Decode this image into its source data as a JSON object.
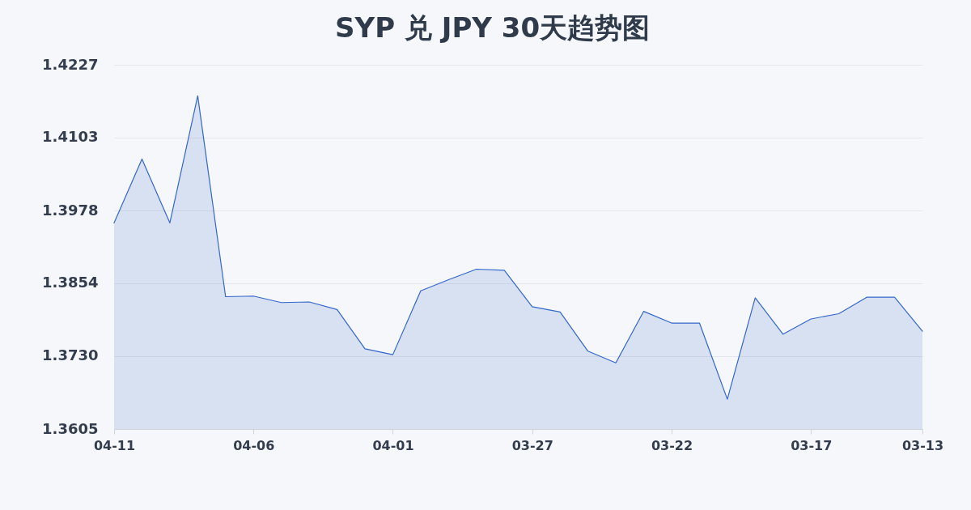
{
  "chart_data": {
    "type": "area",
    "title": "SYP 兑 JPY 30天趋势图",
    "categories": [
      "04-11",
      null,
      null,
      null,
      null,
      "04-06",
      null,
      null,
      null,
      null,
      "04-01",
      null,
      null,
      null,
      null,
      "03-27",
      null,
      null,
      null,
      null,
      "03-22",
      null,
      null,
      null,
      null,
      "03-17",
      null,
      null,
      null,
      "03-13"
    ],
    "series": [
      {
        "color": "#3366cc",
        "values": [
          1.3957,
          1.4066,
          1.3957,
          1.4174,
          1.3831,
          1.3832,
          1.3821,
          1.3822,
          1.3809,
          1.3742,
          1.3732,
          1.3841,
          1.386,
          1.3878,
          1.3876,
          1.3814,
          1.3805,
          1.3738,
          1.3718,
          1.3806,
          1.3786,
          1.3786,
          1.3656,
          1.3829,
          1.3767,
          1.3793,
          1.3802,
          1.383,
          1.383,
          1.3772
        ]
      }
    ],
    "ylim": [
      1.3605,
      1.4227
    ],
    "yticks": [
      1.3605,
      {
        "value": 1.373,
        "label": "1.3730"
      },
      1.3854,
      1.3978,
      1.4103,
      1.4227
    ],
    "grid": "y"
  }
}
